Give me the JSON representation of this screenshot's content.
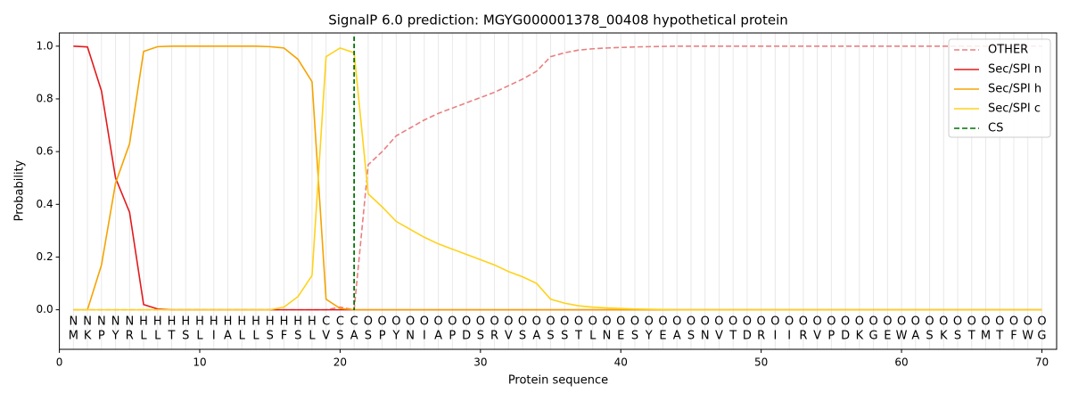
{
  "chart_data": {
    "type": "line",
    "title": "SignalP 6.0 prediction: MGYG000001378_00408 hypothetical protein",
    "xlabel": "Protein sequence",
    "ylabel": "Probability",
    "x": [
      1,
      2,
      3,
      4,
      5,
      6,
      7,
      8,
      9,
      10,
      11,
      12,
      13,
      14,
      15,
      16,
      17,
      18,
      19,
      20,
      21,
      22,
      23,
      24,
      25,
      26,
      27,
      28,
      29,
      30,
      31,
      32,
      33,
      34,
      35,
      36,
      37,
      38,
      39,
      40,
      41,
      42,
      43,
      44,
      45,
      46,
      47,
      48,
      49,
      50,
      51,
      52,
      53,
      54,
      55,
      56,
      57,
      58,
      59,
      60,
      61,
      62,
      63,
      64,
      65,
      66,
      67,
      68,
      69,
      70
    ],
    "residues": [
      "M",
      "K",
      "P",
      "Y",
      "R",
      "L",
      "L",
      "T",
      "S",
      "L",
      "I",
      "A",
      "L",
      "L",
      "S",
      "F",
      "S",
      "L",
      "V",
      "S",
      "A",
      "S",
      "P",
      "Y",
      "N",
      "I",
      "A",
      "P",
      "D",
      "S",
      "R",
      "V",
      "S",
      "A",
      "S",
      "S",
      "T",
      "L",
      "N",
      "E",
      "S",
      "Y",
      "E",
      "A",
      "S",
      "N",
      "V",
      "T",
      "D",
      "R",
      "I",
      "I",
      "R",
      "V",
      "P",
      "D",
      "K",
      "G",
      "E",
      "W",
      "A",
      "S",
      "K",
      "S",
      "T",
      "M",
      "T",
      "F",
      "W",
      "G"
    ],
    "regions": [
      "N",
      "N",
      "N",
      "N",
      "N",
      "H",
      "H",
      "H",
      "H",
      "H",
      "H",
      "H",
      "H",
      "H",
      "H",
      "H",
      "H",
      "H",
      "C",
      "C",
      "C",
      "O",
      "O",
      "O",
      "O",
      "O",
      "O",
      "O",
      "O",
      "O",
      "O",
      "O",
      "O",
      "O",
      "O",
      "O",
      "O",
      "O",
      "O",
      "O",
      "O",
      "O",
      "O",
      "O",
      "O",
      "O",
      "O",
      "O",
      "O",
      "O",
      "O",
      "O",
      "O",
      "O",
      "O",
      "O",
      "O",
      "O",
      "O",
      "O",
      "O",
      "O",
      "O",
      "O",
      "O",
      "O",
      "O",
      "O",
      "O",
      "O"
    ],
    "region_colors": {
      "N": "#ff0000",
      "H": "#ffa500",
      "C": "#ffd700",
      "O": "#808080"
    },
    "series": [
      {
        "name": "OTHER",
        "color": "#e88080",
        "dashed": true,
        "values": [
          0,
          0,
          0,
          0,
          0,
          0,
          0,
          0,
          0,
          0,
          0,
          0,
          0,
          0,
          0,
          0,
          0,
          0,
          0,
          0.01,
          0,
          0.55,
          0.6,
          0.66,
          0.69,
          0.72,
          0.745,
          0.765,
          0.785,
          0.805,
          0.825,
          0.85,
          0.875,
          0.905,
          0.96,
          0.975,
          0.985,
          0.99,
          0.993,
          0.995,
          0.997,
          0.998,
          0.999,
          1,
          1,
          1,
          1,
          1,
          1,
          1,
          1,
          1,
          1,
          1,
          1,
          1,
          1,
          1,
          1,
          1,
          1,
          1,
          1,
          1,
          1,
          1,
          1,
          1,
          1,
          1
        ]
      },
      {
        "name": "Sec/SPI n",
        "color": "#e31a1c",
        "values": [
          1,
          0.997,
          0.83,
          0.5,
          0.37,
          0.02,
          0.003,
          0,
          0,
          0,
          0,
          0,
          0,
          0,
          0,
          0,
          0,
          0,
          0,
          0,
          0,
          0,
          0,
          0,
          0,
          0,
          0,
          0,
          0,
          0,
          0,
          0,
          0,
          0,
          0,
          0,
          0,
          0,
          0,
          0,
          0,
          0,
          0,
          0,
          0,
          0,
          0,
          0,
          0,
          0,
          0,
          0,
          0,
          0,
          0,
          0,
          0,
          0,
          0,
          0,
          0,
          0,
          0,
          0,
          0,
          0,
          0,
          0,
          0,
          0
        ]
      },
      {
        "name": "Sec/SPI h",
        "color": "#f5a300",
        "values": [
          0,
          0,
          0.17,
          0.48,
          0.63,
          0.98,
          0.998,
          1,
          1,
          1,
          1,
          1,
          1,
          1,
          0.998,
          0.993,
          0.95,
          0.865,
          0.04,
          0.005,
          0,
          0,
          0,
          0,
          0,
          0,
          0,
          0,
          0,
          0,
          0,
          0,
          0,
          0,
          0,
          0,
          0,
          0,
          0,
          0,
          0,
          0,
          0,
          0,
          0,
          0,
          0,
          0,
          0,
          0,
          0,
          0,
          0,
          0,
          0,
          0,
          0,
          0,
          0,
          0,
          0,
          0,
          0,
          0,
          0,
          0,
          0,
          0,
          0,
          0
        ]
      },
      {
        "name": "Sec/SPI c",
        "color": "#ffd21a",
        "values": [
          0,
          0,
          0,
          0,
          0,
          0,
          0,
          0,
          0,
          0,
          0,
          0,
          0,
          0,
          0,
          0.01,
          0.05,
          0.13,
          0.96,
          0.993,
          0.975,
          0.44,
          0.39,
          0.335,
          0.305,
          0.275,
          0.25,
          0.23,
          0.21,
          0.19,
          0.17,
          0.145,
          0.125,
          0.1,
          0.04,
          0.025,
          0.015,
          0.01,
          0.007,
          0.005,
          0.003,
          0.002,
          0.001,
          0,
          0,
          0,
          0,
          0,
          0,
          0,
          0,
          0,
          0,
          0,
          0,
          0,
          0,
          0,
          0,
          0,
          0,
          0,
          0,
          0,
          0,
          0,
          0,
          0,
          0,
          0
        ]
      }
    ],
    "cs": {
      "name": "CS",
      "color": "#007000",
      "x": 21
    },
    "xlim": [
      0,
      71.05
    ],
    "xticks": [
      0,
      10,
      20,
      30,
      40,
      50,
      60,
      70
    ],
    "ylim": [
      -0.15,
      1.05
    ],
    "yticks": [
      {
        "value": 0,
        "label": "0.0"
      },
      {
        "value": 0.2,
        "label": "0.2"
      },
      {
        "value": 0.4,
        "label": "0.4"
      },
      {
        "value": 0.6,
        "label": "0.6"
      },
      {
        "value": 0.8,
        "label": "0.8"
      },
      {
        "value": 1,
        "label": "1.0"
      }
    ],
    "legend": "upper right"
  }
}
